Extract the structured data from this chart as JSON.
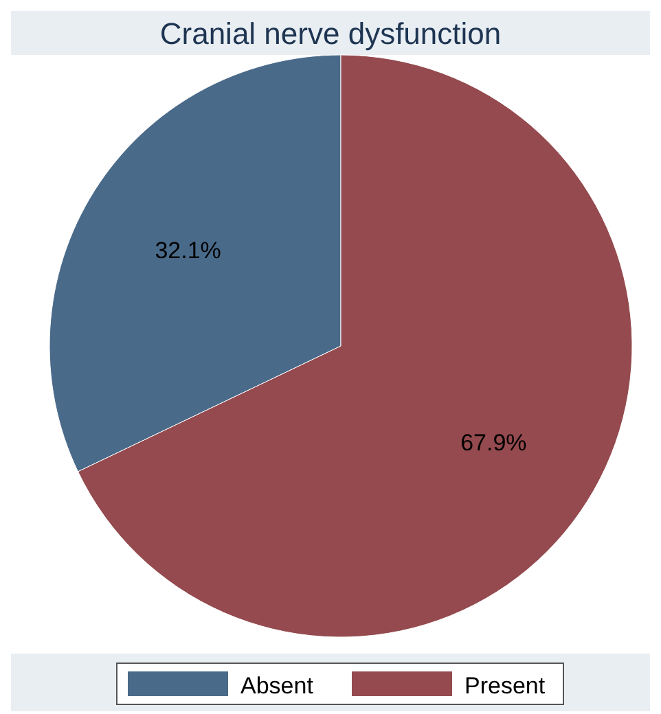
{
  "chart_data": {
    "type": "pie",
    "title": "Cranial nerve dysfunction",
    "categories": [
      "Absent",
      "Present"
    ],
    "values": [
      32.1,
      67.9
    ],
    "colors": [
      "#4a6a8a",
      "#944a4e"
    ],
    "value_labels": [
      "32.1%",
      "67.9%"
    ],
    "legend": "bottom"
  }
}
